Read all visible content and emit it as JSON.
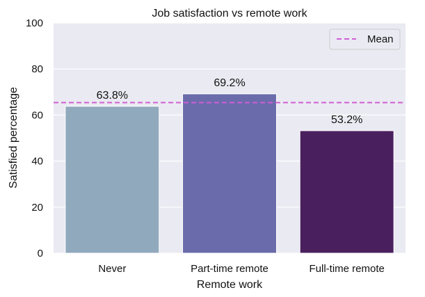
{
  "chart_data": {
    "type": "bar",
    "title": "Job satisfaction vs remote work",
    "xlabel": "Remote work",
    "ylabel": "Satisfied percentage",
    "categories": [
      "Never",
      "Part-time remote",
      "Full-time remote"
    ],
    "values": [
      63.8,
      69.2,
      53.2
    ],
    "data_labels": [
      "63.8%",
      "69.2%",
      "53.2%"
    ],
    "bar_colors": [
      "#91a9bc",
      "#6a6bab",
      "#4a1f5e"
    ],
    "ylim": [
      0,
      100
    ],
    "yticks": [
      0,
      20,
      40,
      60,
      80,
      100
    ],
    "mean": 65.4,
    "mean_label": "Mean",
    "mean_color": "#d05ed4",
    "legend_position": "top-right",
    "grid": true,
    "background_color": "#eaeaf2"
  }
}
